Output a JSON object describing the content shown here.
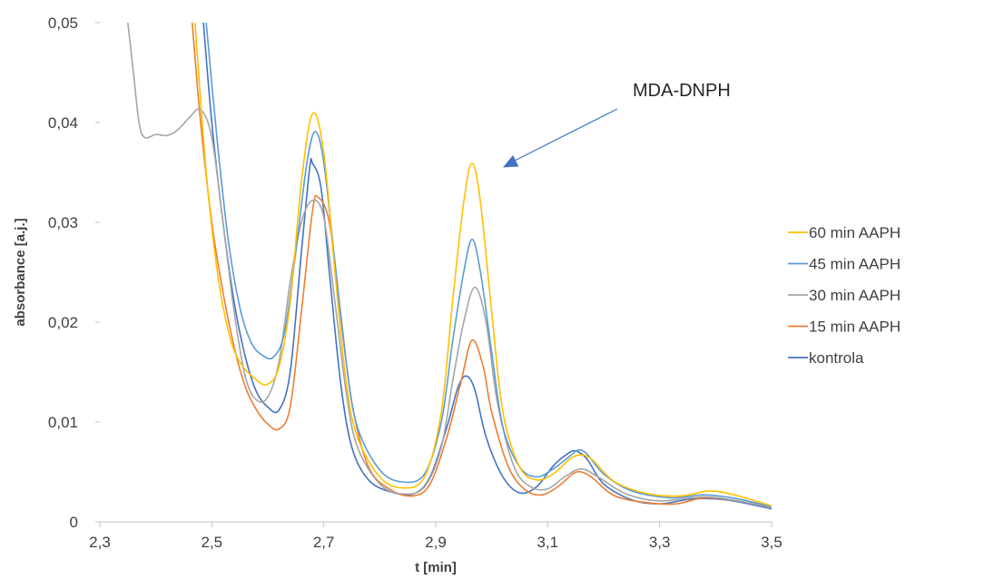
{
  "chart_data": {
    "type": "line",
    "title": "",
    "xlabel": "t [min]",
    "ylabel": "absorbance [a.j.]",
    "xlim": [
      2.3,
      3.5
    ],
    "ylim": [
      0,
      0.05
    ],
    "x_ticks": [
      2.3,
      2.5,
      2.7,
      2.9,
      3.1,
      3.3,
      3.5
    ],
    "x_tick_labels": [
      "2,3",
      "2,5",
      "2,7",
      "2,9",
      "3,1",
      "3,3",
      "3,5"
    ],
    "y_ticks": [
      0,
      0.01,
      0.02,
      0.03,
      0.04,
      0.05
    ],
    "y_tick_labels": [
      "0",
      "0,01",
      "0,02",
      "0,03",
      "0,04",
      "0,05"
    ],
    "grid": false,
    "legend_position": "right",
    "annotation": {
      "text": "MDA-DNPH",
      "points_to": [
        3.02,
        0.0355
      ]
    },
    "series": [
      {
        "name": "60 min AAPH",
        "color": "#FFC000",
        "points": [
          [
            2.47,
            0.05
          ],
          [
            2.49,
            0.035
          ],
          [
            2.51,
            0.025
          ],
          [
            2.53,
            0.019
          ],
          [
            2.55,
            0.016
          ],
          [
            2.58,
            0.0142
          ],
          [
            2.6,
            0.0138
          ],
          [
            2.62,
            0.0155
          ],
          [
            2.64,
            0.022
          ],
          [
            2.66,
            0.034
          ],
          [
            2.68,
            0.0409
          ],
          [
            2.7,
            0.037
          ],
          [
            2.72,
            0.025
          ],
          [
            2.74,
            0.014
          ],
          [
            2.76,
            0.0085
          ],
          [
            2.8,
            0.0045
          ],
          [
            2.84,
            0.0034
          ],
          [
            2.88,
            0.0045
          ],
          [
            2.91,
            0.011
          ],
          [
            2.93,
            0.022
          ],
          [
            2.95,
            0.032
          ],
          [
            2.965,
            0.0359
          ],
          [
            2.98,
            0.032
          ],
          [
            3.0,
            0.021
          ],
          [
            3.02,
            0.011
          ],
          [
            3.05,
            0.0055
          ],
          [
            3.08,
            0.0042
          ],
          [
            3.11,
            0.0048
          ],
          [
            3.14,
            0.0063
          ],
          [
            3.16,
            0.0067
          ],
          [
            3.18,
            0.0062
          ],
          [
            3.22,
            0.004
          ],
          [
            3.28,
            0.0028
          ],
          [
            3.34,
            0.0026
          ],
          [
            3.39,
            0.0031
          ],
          [
            3.44,
            0.0026
          ],
          [
            3.5,
            0.0016
          ]
        ]
      },
      {
        "name": "45 min AAPH",
        "color": "#5B9BD5",
        "points": [
          [
            2.49,
            0.05
          ],
          [
            2.51,
            0.038
          ],
          [
            2.53,
            0.028
          ],
          [
            2.55,
            0.0215
          ],
          [
            2.57,
            0.018
          ],
          [
            2.59,
            0.0167
          ],
          [
            2.61,
            0.0165
          ],
          [
            2.63,
            0.019
          ],
          [
            2.65,
            0.027
          ],
          [
            2.67,
            0.036
          ],
          [
            2.685,
            0.0391
          ],
          [
            2.7,
            0.036
          ],
          [
            2.72,
            0.026
          ],
          [
            2.74,
            0.016
          ],
          [
            2.76,
            0.0095
          ],
          [
            2.8,
            0.0052
          ],
          [
            2.84,
            0.004
          ],
          [
            2.88,
            0.0048
          ],
          [
            2.91,
            0.01
          ],
          [
            2.93,
            0.018
          ],
          [
            2.95,
            0.025
          ],
          [
            2.965,
            0.0283
          ],
          [
            2.98,
            0.025
          ],
          [
            3.0,
            0.017
          ],
          [
            3.02,
            0.0095
          ],
          [
            3.05,
            0.0055
          ],
          [
            3.08,
            0.0045
          ],
          [
            3.11,
            0.0053
          ],
          [
            3.14,
            0.0066
          ],
          [
            3.155,
            0.0072
          ],
          [
            3.17,
            0.0068
          ],
          [
            3.2,
            0.0048
          ],
          [
            3.25,
            0.0031
          ],
          [
            3.32,
            0.0024
          ],
          [
            3.38,
            0.0027
          ],
          [
            3.44,
            0.0023
          ],
          [
            3.5,
            0.0015
          ]
        ]
      },
      {
        "name": "30 min AAPH",
        "color": "#A5A5A5",
        "points": [
          [
            2.35,
            0.05
          ],
          [
            2.36,
            0.045
          ],
          [
            2.37,
            0.04
          ],
          [
            2.38,
            0.0385
          ],
          [
            2.4,
            0.0388
          ],
          [
            2.42,
            0.0387
          ],
          [
            2.44,
            0.0393
          ],
          [
            2.46,
            0.0405
          ],
          [
            2.48,
            0.0413
          ],
          [
            2.5,
            0.0385
          ],
          [
            2.52,
            0.03
          ],
          [
            2.54,
            0.021
          ],
          [
            2.56,
            0.0145
          ],
          [
            2.58,
            0.0122
          ],
          [
            2.6,
            0.0125
          ],
          [
            2.62,
            0.016
          ],
          [
            2.64,
            0.024
          ],
          [
            2.66,
            0.03
          ],
          [
            2.68,
            0.0322
          ],
          [
            2.7,
            0.0305
          ],
          [
            2.72,
            0.022
          ],
          [
            2.74,
            0.013
          ],
          [
            2.76,
            0.0075
          ],
          [
            2.8,
            0.0038
          ],
          [
            2.84,
            0.0028
          ],
          [
            2.88,
            0.0035
          ],
          [
            2.91,
            0.0075
          ],
          [
            2.93,
            0.014
          ],
          [
            2.95,
            0.02
          ],
          [
            2.97,
            0.0235
          ],
          [
            2.99,
            0.02
          ],
          [
            3.01,
            0.012
          ],
          [
            3.04,
            0.0055
          ],
          [
            3.07,
            0.0035
          ],
          [
            3.1,
            0.0033
          ],
          [
            3.13,
            0.0045
          ],
          [
            3.16,
            0.0053
          ],
          [
            3.19,
            0.0045
          ],
          [
            3.24,
            0.0028
          ],
          [
            3.3,
            0.0021
          ],
          [
            3.38,
            0.0025
          ],
          [
            3.44,
            0.0021
          ],
          [
            3.5,
            0.0014
          ]
        ]
      },
      {
        "name": "15 min AAPH",
        "color": "#ED7D31",
        "points": [
          [
            2.465,
            0.05
          ],
          [
            2.48,
            0.04
          ],
          [
            2.5,
            0.03
          ],
          [
            2.52,
            0.023
          ],
          [
            2.54,
            0.0175
          ],
          [
            2.56,
            0.0135
          ],
          [
            2.58,
            0.0112
          ],
          [
            2.6,
            0.0098
          ],
          [
            2.62,
            0.0093
          ],
          [
            2.64,
            0.0115
          ],
          [
            2.66,
            0.021
          ],
          [
            2.68,
            0.0312
          ],
          [
            2.69,
            0.0325
          ],
          [
            2.71,
            0.03
          ],
          [
            2.73,
            0.021
          ],
          [
            2.75,
            0.012
          ],
          [
            2.78,
            0.0055
          ],
          [
            2.82,
            0.0032
          ],
          [
            2.86,
            0.0026
          ],
          [
            2.89,
            0.0038
          ],
          [
            2.92,
            0.0085
          ],
          [
            2.945,
            0.014
          ],
          [
            2.965,
            0.0182
          ],
          [
            2.985,
            0.0155
          ],
          [
            3.0,
            0.011
          ],
          [
            3.03,
            0.0055
          ],
          [
            3.06,
            0.0032
          ],
          [
            3.09,
            0.0027
          ],
          [
            3.12,
            0.0036
          ],
          [
            3.145,
            0.0048
          ],
          [
            3.16,
            0.005
          ],
          [
            3.18,
            0.0044
          ],
          [
            3.22,
            0.0026
          ],
          [
            3.28,
            0.0019
          ],
          [
            3.33,
            0.0018
          ],
          [
            3.38,
            0.0024
          ],
          [
            3.44,
            0.0021
          ],
          [
            3.5,
            0.0014
          ]
        ]
      },
      {
        "name": "kontrola",
        "color": "#4472C4",
        "points": [
          [
            2.485,
            0.05
          ],
          [
            2.5,
            0.04
          ],
          [
            2.52,
            0.03
          ],
          [
            2.54,
            0.022
          ],
          [
            2.56,
            0.0165
          ],
          [
            2.58,
            0.013
          ],
          [
            2.6,
            0.0115
          ],
          [
            2.62,
            0.0112
          ],
          [
            2.64,
            0.015
          ],
          [
            2.66,
            0.027
          ],
          [
            2.675,
            0.0355
          ],
          [
            2.68,
            0.0359
          ],
          [
            2.695,
            0.0335
          ],
          [
            2.71,
            0.025
          ],
          [
            2.73,
            0.014
          ],
          [
            2.75,
            0.0075
          ],
          [
            2.78,
            0.0042
          ],
          [
            2.82,
            0.003
          ],
          [
            2.86,
            0.0028
          ],
          [
            2.89,
            0.0045
          ],
          [
            2.92,
            0.0095
          ],
          [
            2.94,
            0.0135
          ],
          [
            2.955,
            0.0146
          ],
          [
            2.97,
            0.0132
          ],
          [
            2.99,
            0.0085
          ],
          [
            3.02,
            0.0045
          ],
          [
            3.05,
            0.0029
          ],
          [
            3.08,
            0.0035
          ],
          [
            3.11,
            0.0056
          ],
          [
            3.135,
            0.0068
          ],
          [
            3.15,
            0.0071
          ],
          [
            3.17,
            0.0063
          ],
          [
            3.2,
            0.0038
          ],
          [
            3.25,
            0.0022
          ],
          [
            3.3,
            0.0018
          ],
          [
            3.36,
            0.0023
          ],
          [
            3.42,
            0.0022
          ],
          [
            3.5,
            0.0013
          ]
        ]
      }
    ]
  }
}
